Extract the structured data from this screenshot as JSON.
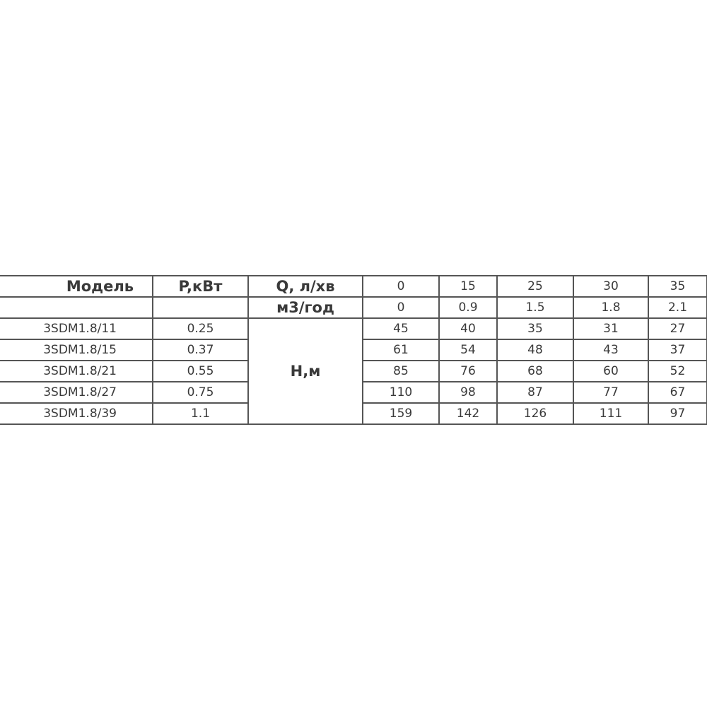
{
  "header": {
    "model_label": "Модель",
    "power_label": "P,кВт",
    "flow_lpm_label": "Q, л/хв",
    "flow_m3h_label": "м3/год",
    "head_label": "H,м",
    "flow_lpm_values": [
      "0",
      "15",
      "25",
      "30",
      "35"
    ],
    "flow_m3h_values": [
      "0",
      "0.9",
      "1.5",
      "1.8",
      "2.1"
    ]
  },
  "rows": [
    {
      "model": "3SDM1.8/11",
      "power": "0.25",
      "head": [
        "45",
        "40",
        "35",
        "31",
        "27"
      ]
    },
    {
      "model": "3SDM1.8/15",
      "power": "0.37",
      "head": [
        "61",
        "54",
        "48",
        "43",
        "37"
      ]
    },
    {
      "model": "3SDM1.8/21",
      "power": "0.55",
      "head": [
        "85",
        "76",
        "68",
        "60",
        "52"
      ]
    },
    {
      "model": "3SDM1.8/27",
      "power": "0.75",
      "head": [
        "110",
        "98",
        "87",
        "77",
        "67"
      ]
    },
    {
      "model": "3SDM1.8/39",
      "power": "1.1",
      "head": [
        "159",
        "142",
        "126",
        "111",
        "97"
      ]
    }
  ]
}
